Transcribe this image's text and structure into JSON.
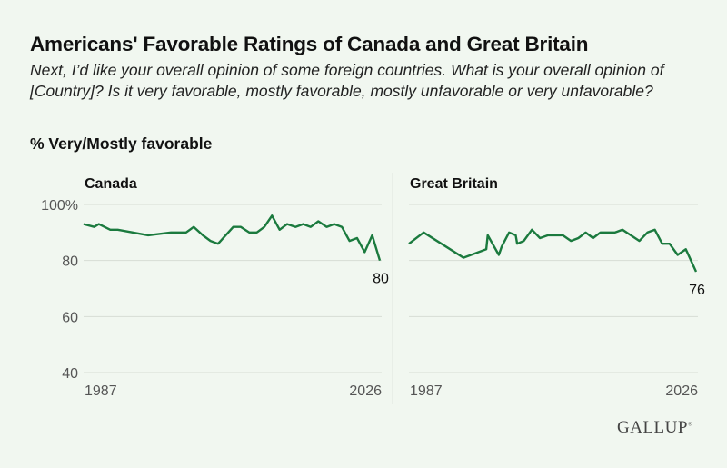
{
  "title": "Americans' Favorable Ratings of Canada and Great Britain",
  "subtitle": "Next, I’d like your overall opinion of some foreign countries. What is your overall opinion of [Country]? Is it very favorable, mostly favorable, mostly unfavorable or very unfavorable?",
  "measure": "% Very/Mostly favorable",
  "logo": "GALLUP",
  "colors": {
    "line": "#1b7a3e",
    "grid": "#d6ddd5",
    "background": "#f1f7f0"
  },
  "chart_data": [
    {
      "type": "line",
      "title": "Canada",
      "xlim": [
        1987,
        2026
      ],
      "ylim": [
        40,
        100
      ],
      "yticks": [
        "100%",
        "80",
        "60",
        "40"
      ],
      "xticks": [
        "1987",
        "2026"
      ],
      "grid": true,
      "end_label": "80",
      "x": [
        1987,
        1988.4,
        1989,
        1990.5,
        1991.5,
        1995.5,
        1998.5,
        2000.5,
        2001.5,
        2002.7,
        2003.7,
        2004.7,
        2006.7,
        2007.7,
        2008.8,
        2009.8,
        2010.8,
        2011.8,
        2012.8,
        2013.8,
        2014.9,
        2015.9,
        2016.9,
        2017.9,
        2019,
        2020,
        2021,
        2022,
        2023,
        2024,
        2025,
        2026
      ],
      "values": [
        93,
        92,
        93,
        91,
        91,
        89,
        90,
        90,
        92,
        89,
        87,
        86,
        92,
        92,
        90,
        90,
        92,
        96,
        91,
        93,
        92,
        93,
        92,
        94,
        92,
        93,
        92,
        87,
        88,
        83,
        89,
        80
      ]
    },
    {
      "type": "line",
      "title": "Great Britain",
      "xlim": [
        1987,
        2026
      ],
      "ylim": [
        40,
        100
      ],
      "xticks": [
        "1987",
        "2026"
      ],
      "grid": true,
      "end_label": "76",
      "x": [
        1987,
        1989,
        1994.4,
        1997.5,
        1997.7,
        1999.2,
        1999.6,
        2000.6,
        2001.5,
        2001.7,
        2002.6,
        2003.7,
        2004.8,
        2005.9,
        2007.9,
        2009,
        2010,
        2011,
        2012,
        2013,
        2015,
        2016,
        2018.3,
        2019.4,
        2020.4,
        2021.4,
        2022.4,
        2023.5,
        2024.6,
        2026
      ],
      "values": [
        86,
        90,
        81,
        84,
        89,
        82,
        85,
        90,
        89,
        86,
        87,
        91,
        88,
        89,
        89,
        87,
        88,
        90,
        88,
        90,
        90,
        91,
        87,
        90,
        91,
        86,
        86,
        82,
        84,
        76
      ]
    }
  ]
}
